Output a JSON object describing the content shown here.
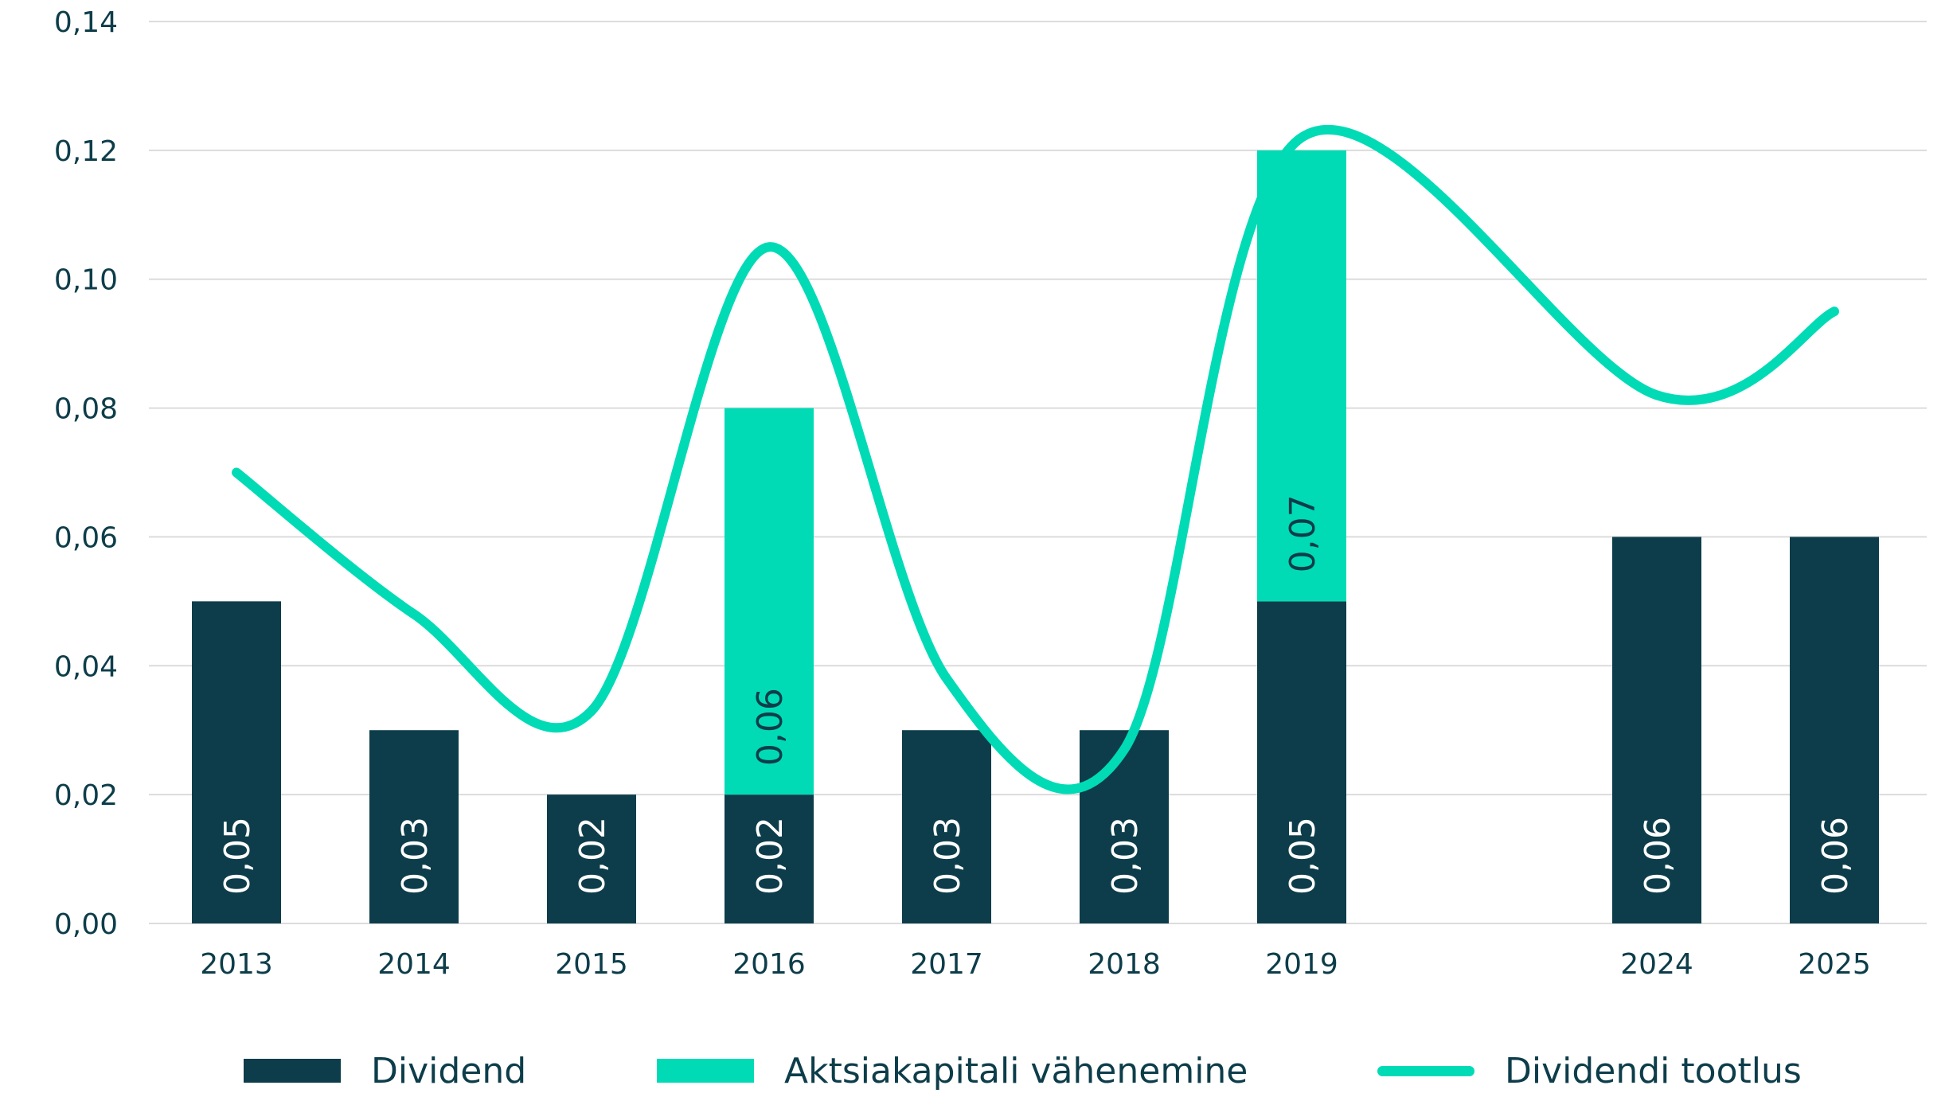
{
  "chart_data": {
    "type": "bar",
    "categories": [
      "2013",
      "2014",
      "2015",
      "2016",
      "2017",
      "2018",
      "2019",
      "2024",
      "2025"
    ],
    "x_positions": [
      0,
      1,
      2,
      3,
      4,
      5,
      6,
      8,
      9
    ],
    "yticks": [
      "0,00",
      "0,02",
      "0,04",
      "0,06",
      "0,08",
      "0,10",
      "0,12",
      "0,14"
    ],
    "ylim": [
      0,
      0.14
    ],
    "grid": true,
    "legend_position": "bottom",
    "series": [
      {
        "name": "Dividend",
        "kind": "bar",
        "color": "#0d3d4a",
        "values": [
          0.05,
          0.03,
          0.02,
          0.02,
          0.03,
          0.03,
          0.05,
          0.06,
          0.06
        ],
        "labels": [
          "0,05",
          "0,03",
          "0,02",
          "0,02",
          "0,03",
          "0,03",
          "0,05",
          "0,06",
          "0,06"
        ]
      },
      {
        "name": "Aktsiakapitali vähenemine",
        "kind": "bar-stacked",
        "color": "#00dbb6",
        "values": [
          null,
          null,
          null,
          0.06,
          null,
          null,
          0.07,
          null,
          null
        ],
        "labels": [
          null,
          null,
          null,
          "0,06",
          null,
          null,
          "0,07",
          null,
          null
        ]
      },
      {
        "name": "Dividendi tootlus",
        "kind": "line",
        "color": "#00dbb6",
        "values": [
          0.07,
          0.048,
          0.033,
          0.105,
          0.038,
          0.027,
          0.122,
          0.082,
          0.095
        ]
      }
    ]
  }
}
